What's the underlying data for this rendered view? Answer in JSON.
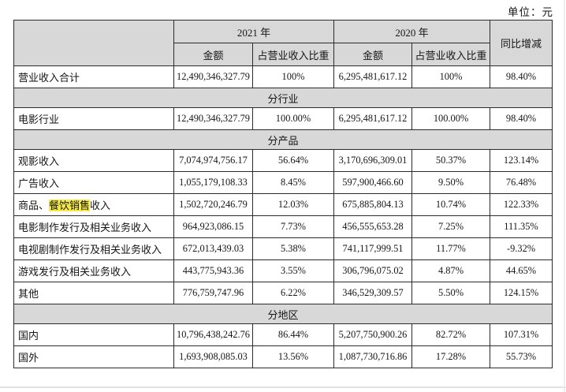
{
  "unit_label": "单位：元",
  "colors": {
    "header_bg": "#d8d8d8",
    "section_bg": "#d8d8d8",
    "highlight_bg": "#f6ea48",
    "border": "#2b2b2b"
  },
  "table": {
    "header": {
      "year_2021": "2021 年",
      "year_2020": "2020 年",
      "amount": "金额",
      "ratio": "占营业收入比重",
      "yoy": "同比增减"
    },
    "rows": [
      {
        "type": "data",
        "label": "营业收入合计",
        "amount_2021": "12,490,346,327.79",
        "ratio_2021": "100%",
        "amount_2020": "6,295,481,617.12",
        "ratio_2020": "100%",
        "yoy": "98.40%"
      },
      {
        "type": "section",
        "label": "分行业"
      },
      {
        "type": "data",
        "label": "电影行业",
        "amount_2021": "12,490,346,327.79",
        "ratio_2021": "100.00%",
        "amount_2020": "6,295,481,617.12",
        "ratio_2020": "100.00%",
        "yoy": "98.40%"
      },
      {
        "type": "section",
        "label": "分产品"
      },
      {
        "type": "data",
        "label": "观影收入",
        "amount_2021": "7,074,974,756.17",
        "ratio_2021": "56.64%",
        "amount_2020": "3,170,696,309.01",
        "ratio_2020": "50.37%",
        "yoy": "123.14%"
      },
      {
        "type": "data",
        "label": "广告收入",
        "amount_2021": "1,055,179,108.33",
        "ratio_2021": "8.45%",
        "amount_2020": "597,900,466.60",
        "ratio_2020": "9.50%",
        "yoy": "76.48%"
      },
      {
        "type": "data",
        "label": "商品、餐饮销售收入",
        "label_prefix": "商品、",
        "label_highlight": "餐饮销售",
        "label_suffix": "收入",
        "amount_2021": "1,502,720,246.79",
        "ratio_2021": "12.03%",
        "amount_2020": "675,885,804.13",
        "ratio_2020": "10.74%",
        "yoy": "122.33%"
      },
      {
        "type": "data",
        "label": "电影制作发行及相关业务收入",
        "amount_2021": "964,923,086.15",
        "ratio_2021": "7.73%",
        "amount_2020": "456,555,653.28",
        "ratio_2020": "7.25%",
        "yoy": "111.35%"
      },
      {
        "type": "data",
        "label": "电视剧制作发行及相关业务收入",
        "amount_2021": "672,013,439.03",
        "ratio_2021": "5.38%",
        "amount_2020": "741,117,999.51",
        "ratio_2020": "11.77%",
        "yoy": "-9.32%"
      },
      {
        "type": "data",
        "label": "游戏发行及相关业务收入",
        "amount_2021": "443,775,943.36",
        "ratio_2021": "3.55%",
        "amount_2020": "306,796,075.02",
        "ratio_2020": "4.87%",
        "yoy": "44.65%"
      },
      {
        "type": "data",
        "label": "其他",
        "amount_2021": "776,759,747.96",
        "ratio_2021": "6.22%",
        "amount_2020": "346,529,309.57",
        "ratio_2020": "5.50%",
        "yoy": "124.15%"
      },
      {
        "type": "section",
        "label": "分地区"
      },
      {
        "type": "data",
        "label": "国内",
        "amount_2021": "10,796,438,242.76",
        "ratio_2021": "86.44%",
        "amount_2020": "5,207,750,900.26",
        "ratio_2020": "82.72%",
        "yoy": "107.31%"
      },
      {
        "type": "data",
        "label": "国外",
        "amount_2021": "1,693,908,085.03",
        "ratio_2021": "13.56%",
        "amount_2020": "1,087,730,716.86",
        "ratio_2020": "17.28%",
        "yoy": "55.73%"
      }
    ]
  }
}
